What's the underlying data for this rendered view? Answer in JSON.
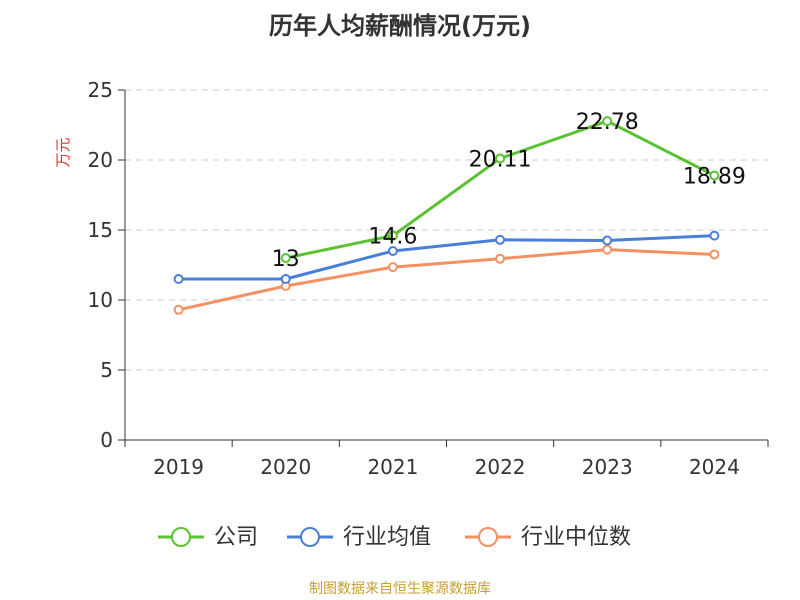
{
  "chart_data": {
    "type": "line",
    "title": "历年人均薪酬情况(万元)",
    "ylabel": "万元",
    "xlabel": "",
    "ylim": [
      0,
      25
    ],
    "yticks": [
      0,
      5,
      10,
      15,
      20,
      25
    ],
    "categories": [
      "2019",
      "2020",
      "2021",
      "2022",
      "2023",
      "2024"
    ],
    "grid": true,
    "legend_position": "bottom",
    "series": [
      {
        "name": "公司",
        "color": "#5bc232",
        "values": [
          null,
          13,
          14.6,
          20.11,
          22.78,
          18.89
        ],
        "labels": [
          "",
          "13",
          "14.6",
          "20.11",
          "22.78",
          "18.89"
        ]
      },
      {
        "name": "行业均值",
        "color": "#4a7fd9",
        "values": [
          11.5,
          11.5,
          13.5,
          14.3,
          14.25,
          14.6
        ]
      },
      {
        "name": "行业中位数",
        "color": "#f59062",
        "values": [
          9.3,
          11.0,
          12.35,
          12.95,
          13.6,
          13.25
        ]
      }
    ]
  },
  "source_note": "制图数据来自恒生聚源数据库"
}
